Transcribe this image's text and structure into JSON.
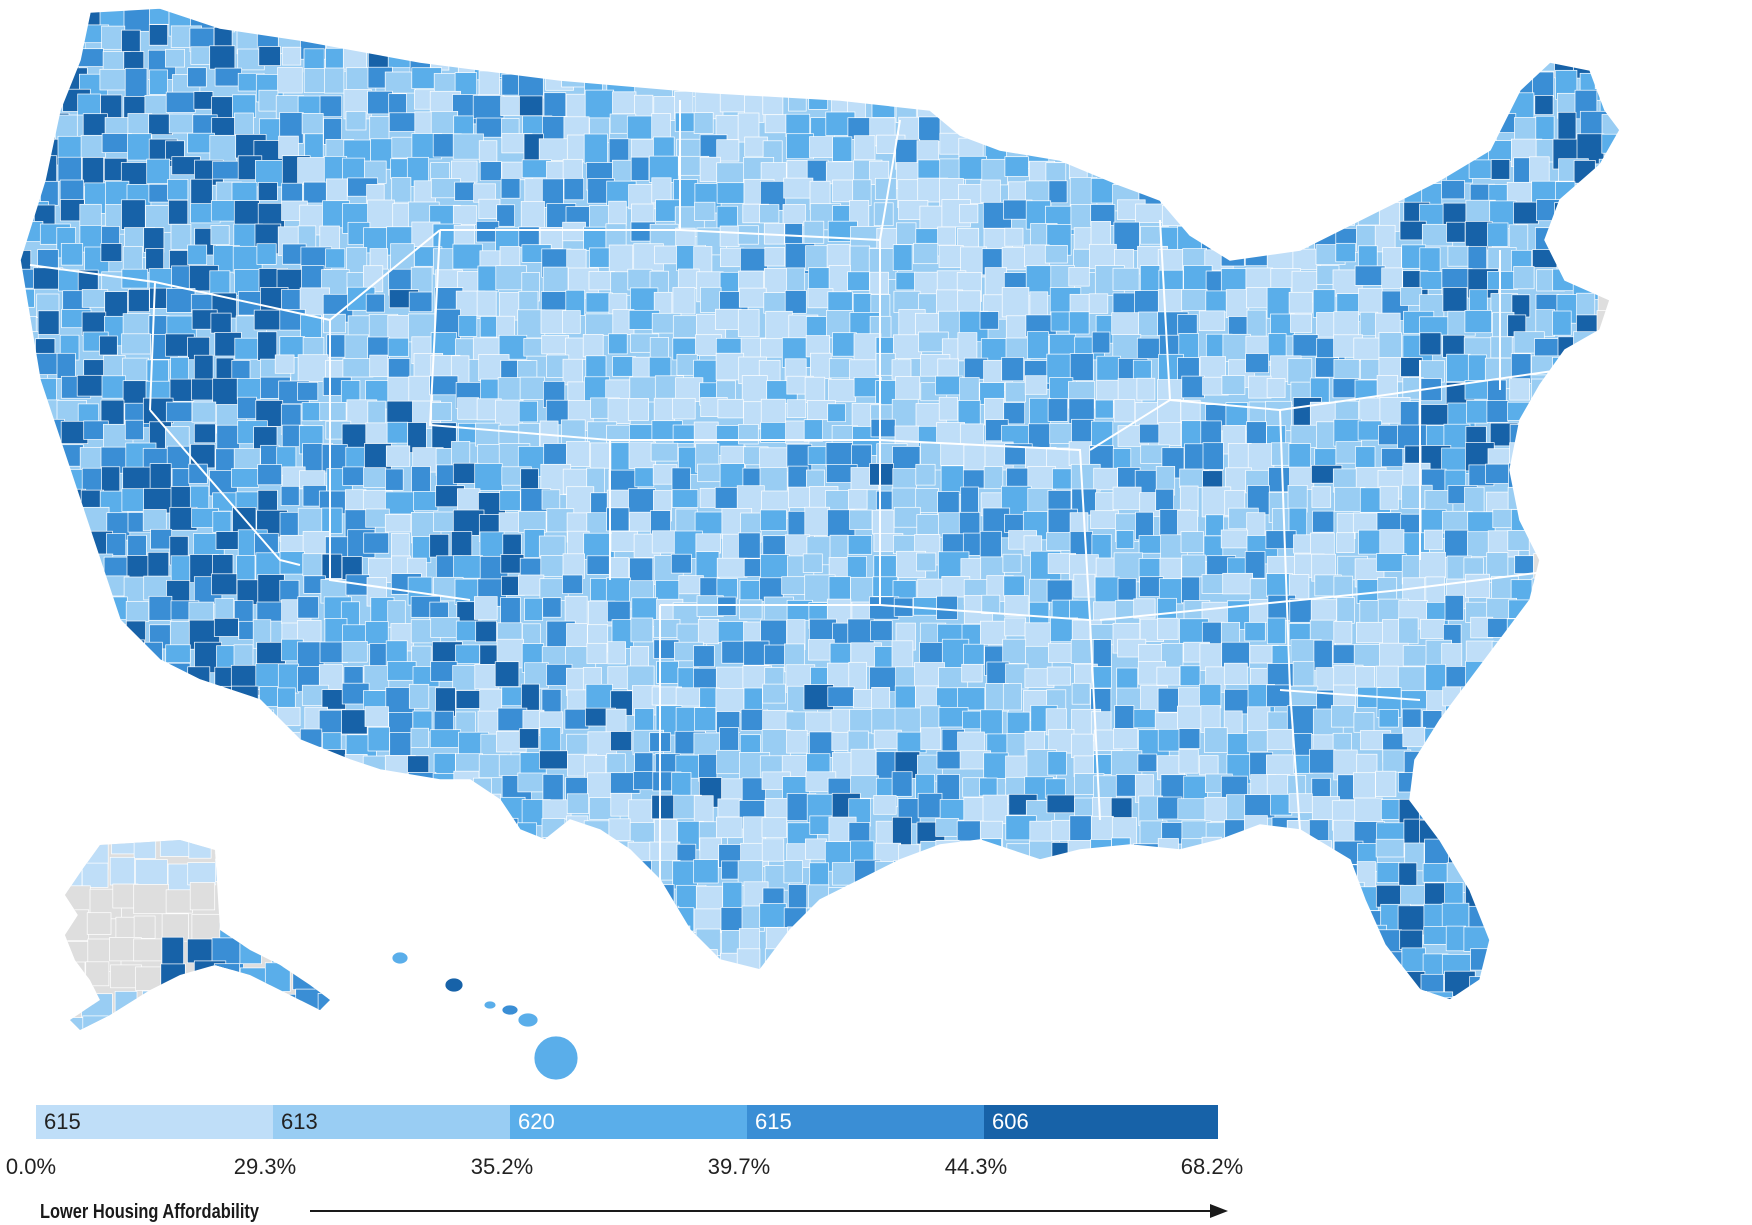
{
  "legend": {
    "bins": [
      {
        "count": "615",
        "color": "#bfdef8"
      },
      {
        "count": "613",
        "color": "#99cdf3"
      },
      {
        "count": "620",
        "color": "#5aaeea"
      },
      {
        "count": "615",
        "color": "#3a8ed5"
      },
      {
        "count": "606",
        "color": "#1762a8"
      }
    ],
    "ticks": [
      "0.0%",
      "29.3%",
      "35.2%",
      "39.7%",
      "44.3%",
      "68.2%"
    ],
    "axis_title": "Lower Housing Affordability"
  },
  "colors": {
    "no_data": "#dedede",
    "border": "#ffffff",
    "tick_text": "#222222",
    "arrow": "#1a1a1a"
  }
}
